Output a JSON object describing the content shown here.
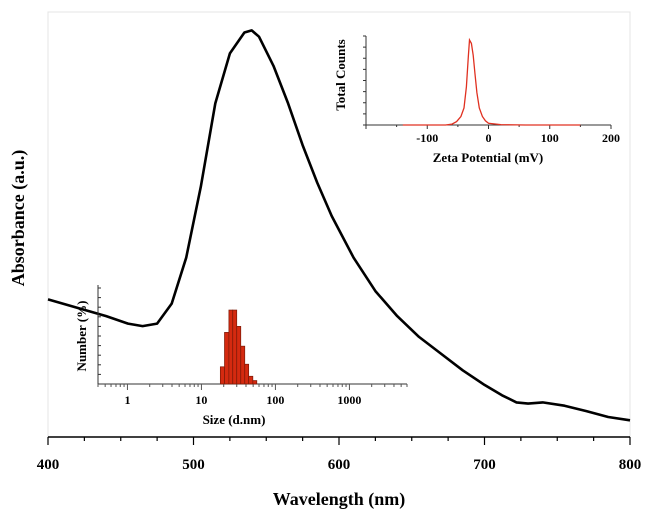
{
  "chart_data": [
    {
      "type": "line",
      "xlabel": "Wavelength (nm)",
      "ylabel": "Absorbance (a.u.)",
      "xlim": [
        400,
        800
      ],
      "ylim": [
        0,
        1
      ],
      "x_ticks": [
        400,
        500,
        600,
        700,
        800
      ],
      "y_ticks": [],
      "grid": false,
      "legend": "none",
      "series": [
        {
          "color": "#000000",
          "x": [
            400,
            420,
            440,
            455,
            465,
            475,
            485,
            495,
            505,
            515,
            525,
            535,
            540,
            545,
            555,
            565,
            575,
            585,
            595,
            610,
            625,
            640,
            655,
            670,
            685,
            700,
            712,
            722,
            730,
            740,
            755,
            770,
            785,
            800
          ],
          "y": [
            0.33,
            0.31,
            0.29,
            0.272,
            0.266,
            0.272,
            0.32,
            0.43,
            0.6,
            0.8,
            0.92,
            0.97,
            0.975,
            0.96,
            0.89,
            0.8,
            0.7,
            0.61,
            0.53,
            0.43,
            0.35,
            0.29,
            0.24,
            0.2,
            0.16,
            0.125,
            0.1,
            0.083,
            0.08,
            0.083,
            0.075,
            0.062,
            0.048,
            0.04
          ]
        }
      ]
    },
    {
      "type": "line",
      "xlabel": "Zeta Potential (mV)",
      "ylabel": "Total Counts",
      "xlim": [
        -200,
        200
      ],
      "ylim": [
        0,
        1
      ],
      "x_ticks": [
        -100,
        0,
        100,
        200
      ],
      "x_tick_labels": [
        "-100",
        "0",
        "100",
        "200"
      ],
      "series": [
        {
          "color": "#e03020",
          "x": [
            -140,
            -70,
            -60,
            -52,
            -45,
            -40,
            -36,
            -33,
            -31,
            -28,
            -25,
            -22,
            -19,
            -15,
            -10,
            -5,
            0,
            20,
            60,
            150
          ],
          "y": [
            0,
            0,
            0.01,
            0.04,
            0.1,
            0.2,
            0.45,
            0.8,
            1.0,
            0.96,
            0.82,
            0.6,
            0.38,
            0.2,
            0.1,
            0.05,
            0.02,
            0.005,
            0,
            0
          ]
        }
      ]
    },
    {
      "type": "bar",
      "xlabel": "Size (d.nm)",
      "ylabel": "Number (%)",
      "x_scale": "log",
      "xlim": [
        0.4,
        6000
      ],
      "ylim": [
        0,
        1
      ],
      "x_ticks": [
        1,
        10,
        100,
        1000
      ],
      "x_tick_labels": [
        "1",
        "10",
        "100",
        "1000"
      ],
      "bins": [
        {
          "from": 18,
          "to": 20.5,
          "value": 0.2
        },
        {
          "from": 20.5,
          "to": 23.5,
          "value": 0.6
        },
        {
          "from": 23.5,
          "to": 26.5,
          "value": 0.86
        },
        {
          "from": 26.5,
          "to": 30,
          "value": 0.86
        },
        {
          "from": 30,
          "to": 34,
          "value": 0.67
        },
        {
          "from": 34,
          "to": 38.5,
          "value": 0.44
        },
        {
          "from": 38.5,
          "to": 43.5,
          "value": 0.23
        },
        {
          "from": 43.5,
          "to": 49.5,
          "value": 0.09
        },
        {
          "from": 49.5,
          "to": 56,
          "value": 0.04
        }
      ],
      "bar_color": "#d42a10"
    }
  ]
}
